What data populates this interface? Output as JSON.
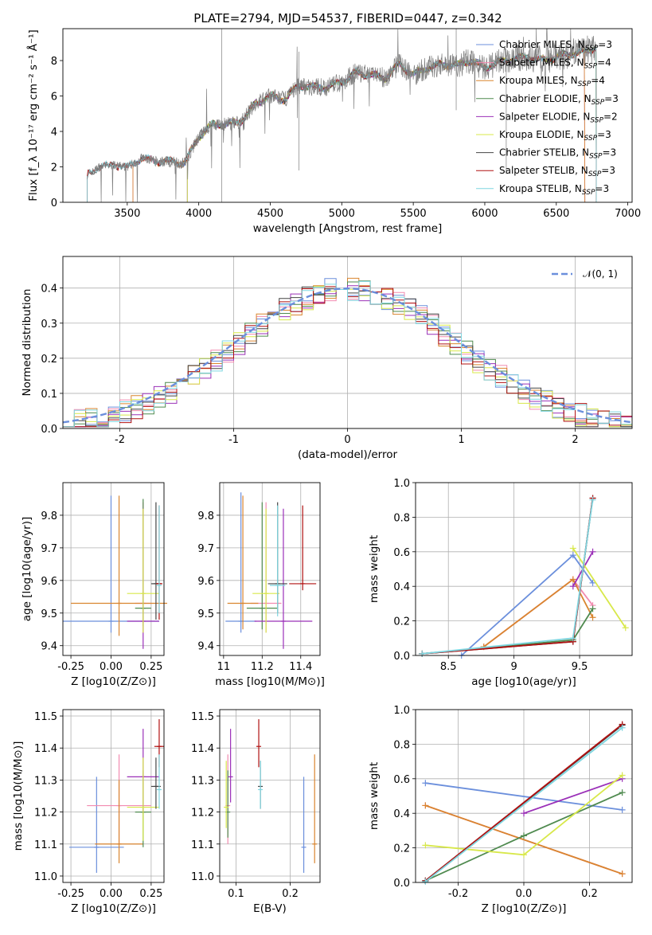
{
  "page": {
    "title": "PLATE=2794, MJD=54537, FIBERID=0447, z=0.342"
  },
  "colors": [
    "#6b8fdc",
    "#f28bb0",
    "#d9852f",
    "#4f8a4f",
    "#9b30b8",
    "#d8e84a",
    "#444444",
    "#b01010",
    "#7fd6e0"
  ],
  "chart_data": [
    {
      "id": "spectrum",
      "type": "line",
      "xlabel": "wavelength [Angstrom, rest frame]",
      "ylabel": "Flux [f_λ 10⁻¹⁷ erg cm⁻² s⁻¹ Å⁻¹]",
      "xlim": [
        3050,
        7030
      ],
      "ylim": [
        0,
        9.8
      ],
      "xticks": [
        3500,
        4000,
        4500,
        5000,
        5500,
        6000,
        6500,
        7000
      ],
      "yticks": [
        0,
        2,
        4,
        6,
        8
      ],
      "legend_loc": "upper-right",
      "x": [
        3220,
        3300,
        3400,
        3500,
        3600,
        3700,
        3800,
        3900,
        4000,
        4100,
        4200,
        4300,
        4400,
        4500,
        4600,
        4700,
        4800,
        4900,
        5000,
        5100,
        5200,
        5300,
        5400,
        5500,
        5600,
        5700,
        5800,
        5900,
        6000,
        6100,
        6200,
        6300,
        6400,
        6500,
        6600,
        6700,
        6780
      ],
      "y": [
        1.5,
        2.0,
        2.1,
        2.0,
        2.5,
        2.3,
        2.3,
        2.2,
        3.7,
        4.4,
        4.4,
        4.6,
        5.6,
        6.0,
        5.8,
        6.6,
        6.5,
        6.5,
        6.8,
        7.3,
        7.2,
        7.0,
        7.8,
        7.2,
        7.6,
        7.8,
        7.7,
        8.0,
        7.6,
        7.9,
        8.1,
        8.2,
        8.0,
        8.2,
        8.4,
        8.5,
        8.8
      ],
      "model_ranges": [
        {
          "series": "Chabrier MILES, N_SSP=3",
          "min": 3540,
          "max": 6700
        },
        {
          "series": "Salpeter MILES, N_SSP=4",
          "min": 3540,
          "max": 6700
        },
        {
          "series": "Kroupa MILES, N_SSP=4",
          "min": 3540,
          "max": 6700
        },
        {
          "series": "Chabrier ELODIE, N_SSP=3",
          "min": 3920,
          "max": 6780
        },
        {
          "series": "Salpeter ELODIE, N_SSP=2",
          "min": 3920,
          "max": 6780
        },
        {
          "series": "Kroupa ELODIE, N_SSP=3",
          "min": 3920,
          "max": 6780
        },
        {
          "series": "Chabrier STELIB, N_SSP=3",
          "min": 3220,
          "max": 6780
        },
        {
          "series": "Salpeter STELIB, N_SSP=3",
          "min": 3220,
          "max": 6780
        },
        {
          "series": "Kroupa STELIB, N_SSP=3",
          "min": 3220,
          "max": 6780
        }
      ],
      "series": [
        {
          "name": "Chabrier MILES, N_SSP=3"
        },
        {
          "name": "Salpeter MILES, N_SSP=4"
        },
        {
          "name": "Kroupa MILES, N_SSP=4"
        },
        {
          "name": "Chabrier ELODIE, N_SSP=3"
        },
        {
          "name": "Salpeter ELODIE, N_SSP=2"
        },
        {
          "name": "Kroupa ELODIE, N_SSP=3"
        },
        {
          "name": "Chabrier STELIB, N_SSP=3"
        },
        {
          "name": "Salpeter STELIB, N_SSP=3"
        },
        {
          "name": "Kroupa STELIB, N_SSP=3"
        }
      ]
    },
    {
      "id": "residuals",
      "type": "line",
      "xlabel": "(data-model)/error",
      "ylabel": "Normed distribution",
      "xlim": [
        -2.5,
        2.5
      ],
      "ylim": [
        0,
        0.49
      ],
      "xticks": [
        -2,
        -1,
        0,
        1,
        2
      ],
      "yticks": [
        0.0,
        0.1,
        0.2,
        0.3,
        0.4
      ],
      "legend": "𝒩(0, 1)",
      "legend_loc": "upper-right",
      "bin_width": 0.1,
      "series_style": "step"
    },
    {
      "id": "age_vs_Z",
      "type": "scatter",
      "xlabel": "Z [log10(Z/Z⊙)]",
      "ylabel": "age [log10(age/yr)]",
      "xlim": [
        -0.3,
        0.33
      ],
      "ylim": [
        9.37,
        9.9
      ],
      "xticks": [
        -0.25,
        0.0,
        0.25
      ],
      "yticks": [
        9.4,
        9.5,
        9.6,
        9.7,
        9.8
      ],
      "points": [
        {
          "x": 0.0,
          "y": 9.475,
          "xerr": 0.3,
          "ylo": 9.44,
          "yhi": 9.86
        },
        {
          "x": 0.2,
          "y": 9.53,
          "xerr": 0.05,
          "ylo": 9.44,
          "yhi": 9.84
        },
        {
          "x": 0.05,
          "y": 9.53,
          "xerr": 0.3,
          "ylo": 9.43,
          "yhi": 9.86
        },
        {
          "x": 0.2,
          "y": 9.515,
          "xerr": 0.05,
          "ylo": 9.46,
          "yhi": 9.85
        },
        {
          "x": 0.2,
          "y": 9.475,
          "xerr": 0.1,
          "ylo": 9.39,
          "yhi": 9.82
        },
        {
          "x": 0.2,
          "y": 9.56,
          "xerr": 0.1,
          "ylo": 9.44,
          "yhi": 9.82
        },
        {
          "x": 0.28,
          "y": 9.59,
          "xerr": 0.03,
          "ylo": 9.48,
          "yhi": 9.84
        },
        {
          "x": 0.3,
          "y": 9.59,
          "xerr": 0.02,
          "ylo": 9.48,
          "yhi": 9.83
        },
        {
          "x": 0.3,
          "y": 9.585,
          "xerr": 0.01,
          "ylo": 9.5,
          "yhi": 9.83
        }
      ]
    },
    {
      "id": "age_vs_mass",
      "type": "scatter",
      "xlabel": "mass [log10(M/M⊙)]",
      "ylabel": "",
      "xlim": [
        10.98,
        11.5
      ],
      "ylim": [
        9.37,
        9.9
      ],
      "xticks": [
        11.0,
        11.2,
        11.4
      ],
      "yticks": [
        9.4,
        9.5,
        9.6,
        9.7,
        9.8
      ],
      "points": [
        {
          "x": 11.09,
          "y": 9.475,
          "xerr": 0.08,
          "ylo": 9.44,
          "yhi": 9.87
        },
        {
          "x": 11.22,
          "y": 9.53,
          "xerr": 0.08,
          "ylo": 9.44,
          "yhi": 9.84
        },
        {
          "x": 11.1,
          "y": 9.53,
          "xerr": 0.08,
          "ylo": 9.45,
          "yhi": 9.86
        },
        {
          "x": 11.2,
          "y": 9.515,
          "xerr": 0.08,
          "ylo": 9.45,
          "yhi": 9.84
        },
        {
          "x": 11.31,
          "y": 9.475,
          "xerr": 0.15,
          "ylo": 9.39,
          "yhi": 9.82
        },
        {
          "x": 11.22,
          "y": 9.56,
          "xerr": 0.07,
          "ylo": 9.44,
          "yhi": 9.82
        },
        {
          "x": 11.28,
          "y": 9.59,
          "xerr": 0.05,
          "ylo": 9.5,
          "yhi": 9.84
        },
        {
          "x": 11.41,
          "y": 9.59,
          "xerr": 0.07,
          "ylo": 9.57,
          "yhi": 9.83
        },
        {
          "x": 11.28,
          "y": 9.585,
          "xerr": 0.04,
          "ylo": 9.49,
          "yhi": 9.83
        }
      ]
    },
    {
      "id": "weight_vs_age",
      "type": "line",
      "xlabel": "age [log10(age/yr)]",
      "ylabel": "mass weight",
      "xlim": [
        8.25,
        9.9
      ],
      "ylim": [
        0,
        1.0
      ],
      "xticks": [
        8.5,
        9.0,
        9.5
      ],
      "yticks": [
        0.0,
        0.2,
        0.4,
        0.6,
        0.8,
        1.0
      ],
      "series": [
        {
          "x": [
            8.6,
            9.45,
            9.6
          ],
          "y": [
            0.0,
            0.58,
            0.42
          ]
        },
        {
          "x": [
            8.77,
            9.45,
            9.6
          ],
          "y": [
            0.05,
            0.44,
            0.29
          ]
        },
        {
          "x": [
            8.77,
            9.45,
            9.6
          ],
          "y": [
            0.05,
            0.44,
            0.22
          ]
        },
        {
          "x": [
            8.3,
            9.45,
            9.6
          ],
          "y": [
            0.01,
            0.09,
            0.27
          ]
        },
        {
          "x": [
            9.45,
            9.6
          ],
          "y": [
            0.4,
            0.6
          ]
        },
        {
          "x": [
            9.45,
            9.85
          ],
          "y": [
            0.62,
            0.16
          ]
        },
        {
          "x": [
            8.3,
            9.45,
            9.6
          ],
          "y": [
            0.01,
            0.08,
            0.91
          ]
        },
        {
          "x": [
            8.3,
            9.45,
            9.6
          ],
          "y": [
            0.01,
            0.08,
            0.91
          ]
        },
        {
          "x": [
            8.3,
            9.45,
            9.6
          ],
          "y": [
            0.01,
            0.1,
            0.9
          ]
        }
      ]
    },
    {
      "id": "mass_vs_Z",
      "type": "scatter",
      "xlabel": "Z [log10(Z/Z⊙)]",
      "ylabel": "mass [log10(M/M⊙)]",
      "xlim": [
        -0.3,
        0.33
      ],
      "ylim": [
        10.98,
        11.52
      ],
      "xticks": [
        -0.25,
        0.0,
        0.25
      ],
      "yticks": [
        11.0,
        11.1,
        11.2,
        11.3,
        11.4,
        11.5
      ],
      "points": [
        {
          "x": -0.09,
          "y": 11.09,
          "xerr": 0.17,
          "ylo": 11.01,
          "yhi": 11.31
        },
        {
          "x": 0.05,
          "y": 11.22,
          "xerr": 0.2,
          "ylo": 11.1,
          "yhi": 11.38
        },
        {
          "x": 0.05,
          "y": 11.1,
          "xerr": 0.15,
          "ylo": 11.04,
          "yhi": 11.3
        },
        {
          "x": 0.2,
          "y": 11.2,
          "xerr": 0.05,
          "ylo": 11.09,
          "yhi": 11.33
        },
        {
          "x": 0.2,
          "y": 11.31,
          "xerr": 0.1,
          "ylo": 11.2,
          "yhi": 11.46
        },
        {
          "x": 0.2,
          "y": 11.215,
          "xerr": 0.1,
          "ylo": 11.11,
          "yhi": 11.37
        },
        {
          "x": 0.28,
          "y": 11.28,
          "xerr": 0.03,
          "ylo": 11.21,
          "yhi": 11.37
        },
        {
          "x": 0.3,
          "y": 11.405,
          "xerr": 0.03,
          "ylo": 11.34,
          "yhi": 11.49
        },
        {
          "x": 0.3,
          "y": 11.27,
          "xerr": 0.01,
          "ylo": 11.21,
          "yhi": 11.38
        }
      ]
    },
    {
      "id": "mass_vs_ebv",
      "type": "scatter",
      "xlabel": "E(B-V)",
      "ylabel": "",
      "xlim": [
        0.07,
        0.255
      ],
      "ylim": [
        10.98,
        11.52
      ],
      "xticks": [
        0.1,
        0.2
      ],
      "yticks": [
        11.0,
        11.1,
        11.2,
        11.3,
        11.4,
        11.5
      ],
      "points": [
        {
          "x": 0.225,
          "y": 11.09,
          "ylo": 11.01,
          "yhi": 11.31
        },
        {
          "x": 0.085,
          "y": 11.22,
          "ylo": 11.1,
          "yhi": 11.38
        },
        {
          "x": 0.245,
          "y": 11.1,
          "ylo": 11.04,
          "yhi": 11.38
        },
        {
          "x": 0.085,
          "y": 11.2,
          "ylo": 11.12,
          "yhi": 11.33
        },
        {
          "x": 0.09,
          "y": 11.31,
          "ylo": 11.23,
          "yhi": 11.46
        },
        {
          "x": 0.082,
          "y": 11.215,
          "ylo": 11.15,
          "yhi": 11.36
        },
        {
          "x": 0.145,
          "y": 11.28,
          "ylo": 11.21,
          "yhi": 11.36
        },
        {
          "x": 0.142,
          "y": 11.405,
          "ylo": 11.34,
          "yhi": 11.49
        },
        {
          "x": 0.145,
          "y": 11.27,
          "ylo": 11.21,
          "yhi": 11.36
        }
      ]
    },
    {
      "id": "weight_vs_Z",
      "type": "line",
      "xlabel": "Z [log10(Z/Z⊙)]",
      "ylabel": "mass weight",
      "xlim": [
        -0.33,
        0.33
      ],
      "ylim": [
        0,
        1.0
      ],
      "xticks": [
        -0.2,
        0.0,
        0.2
      ],
      "yticks": [
        0.0,
        0.2,
        0.4,
        0.6,
        0.8,
        1.0
      ],
      "series": [
        {
          "x": [
            -0.3,
            0.3
          ],
          "y": [
            0.575,
            0.42
          ]
        },
        {
          "x": [
            -0.3,
            0.3
          ],
          "y": [
            0.445,
            0.05
          ]
        },
        {
          "x": [
            -0.3,
            0.3
          ],
          "y": [
            0.445,
            0.05
          ]
        },
        {
          "x": [
            -0.3,
            0.0,
            0.3
          ],
          "y": [
            0.01,
            0.27,
            0.52
          ]
        },
        {
          "x": [
            0.0,
            0.3
          ],
          "y": [
            0.4,
            0.6
          ]
        },
        {
          "x": [
            -0.3,
            0.0,
            0.3
          ],
          "y": [
            0.215,
            0.16,
            0.62
          ]
        },
        {
          "x": [
            -0.3,
            0.3
          ],
          "y": [
            0.01,
            0.91
          ]
        },
        {
          "x": [
            -0.3,
            0.3
          ],
          "y": [
            0.01,
            0.915
          ]
        },
        {
          "x": [
            -0.3,
            0.3
          ],
          "y": [
            0.005,
            0.895
          ]
        }
      ]
    }
  ]
}
